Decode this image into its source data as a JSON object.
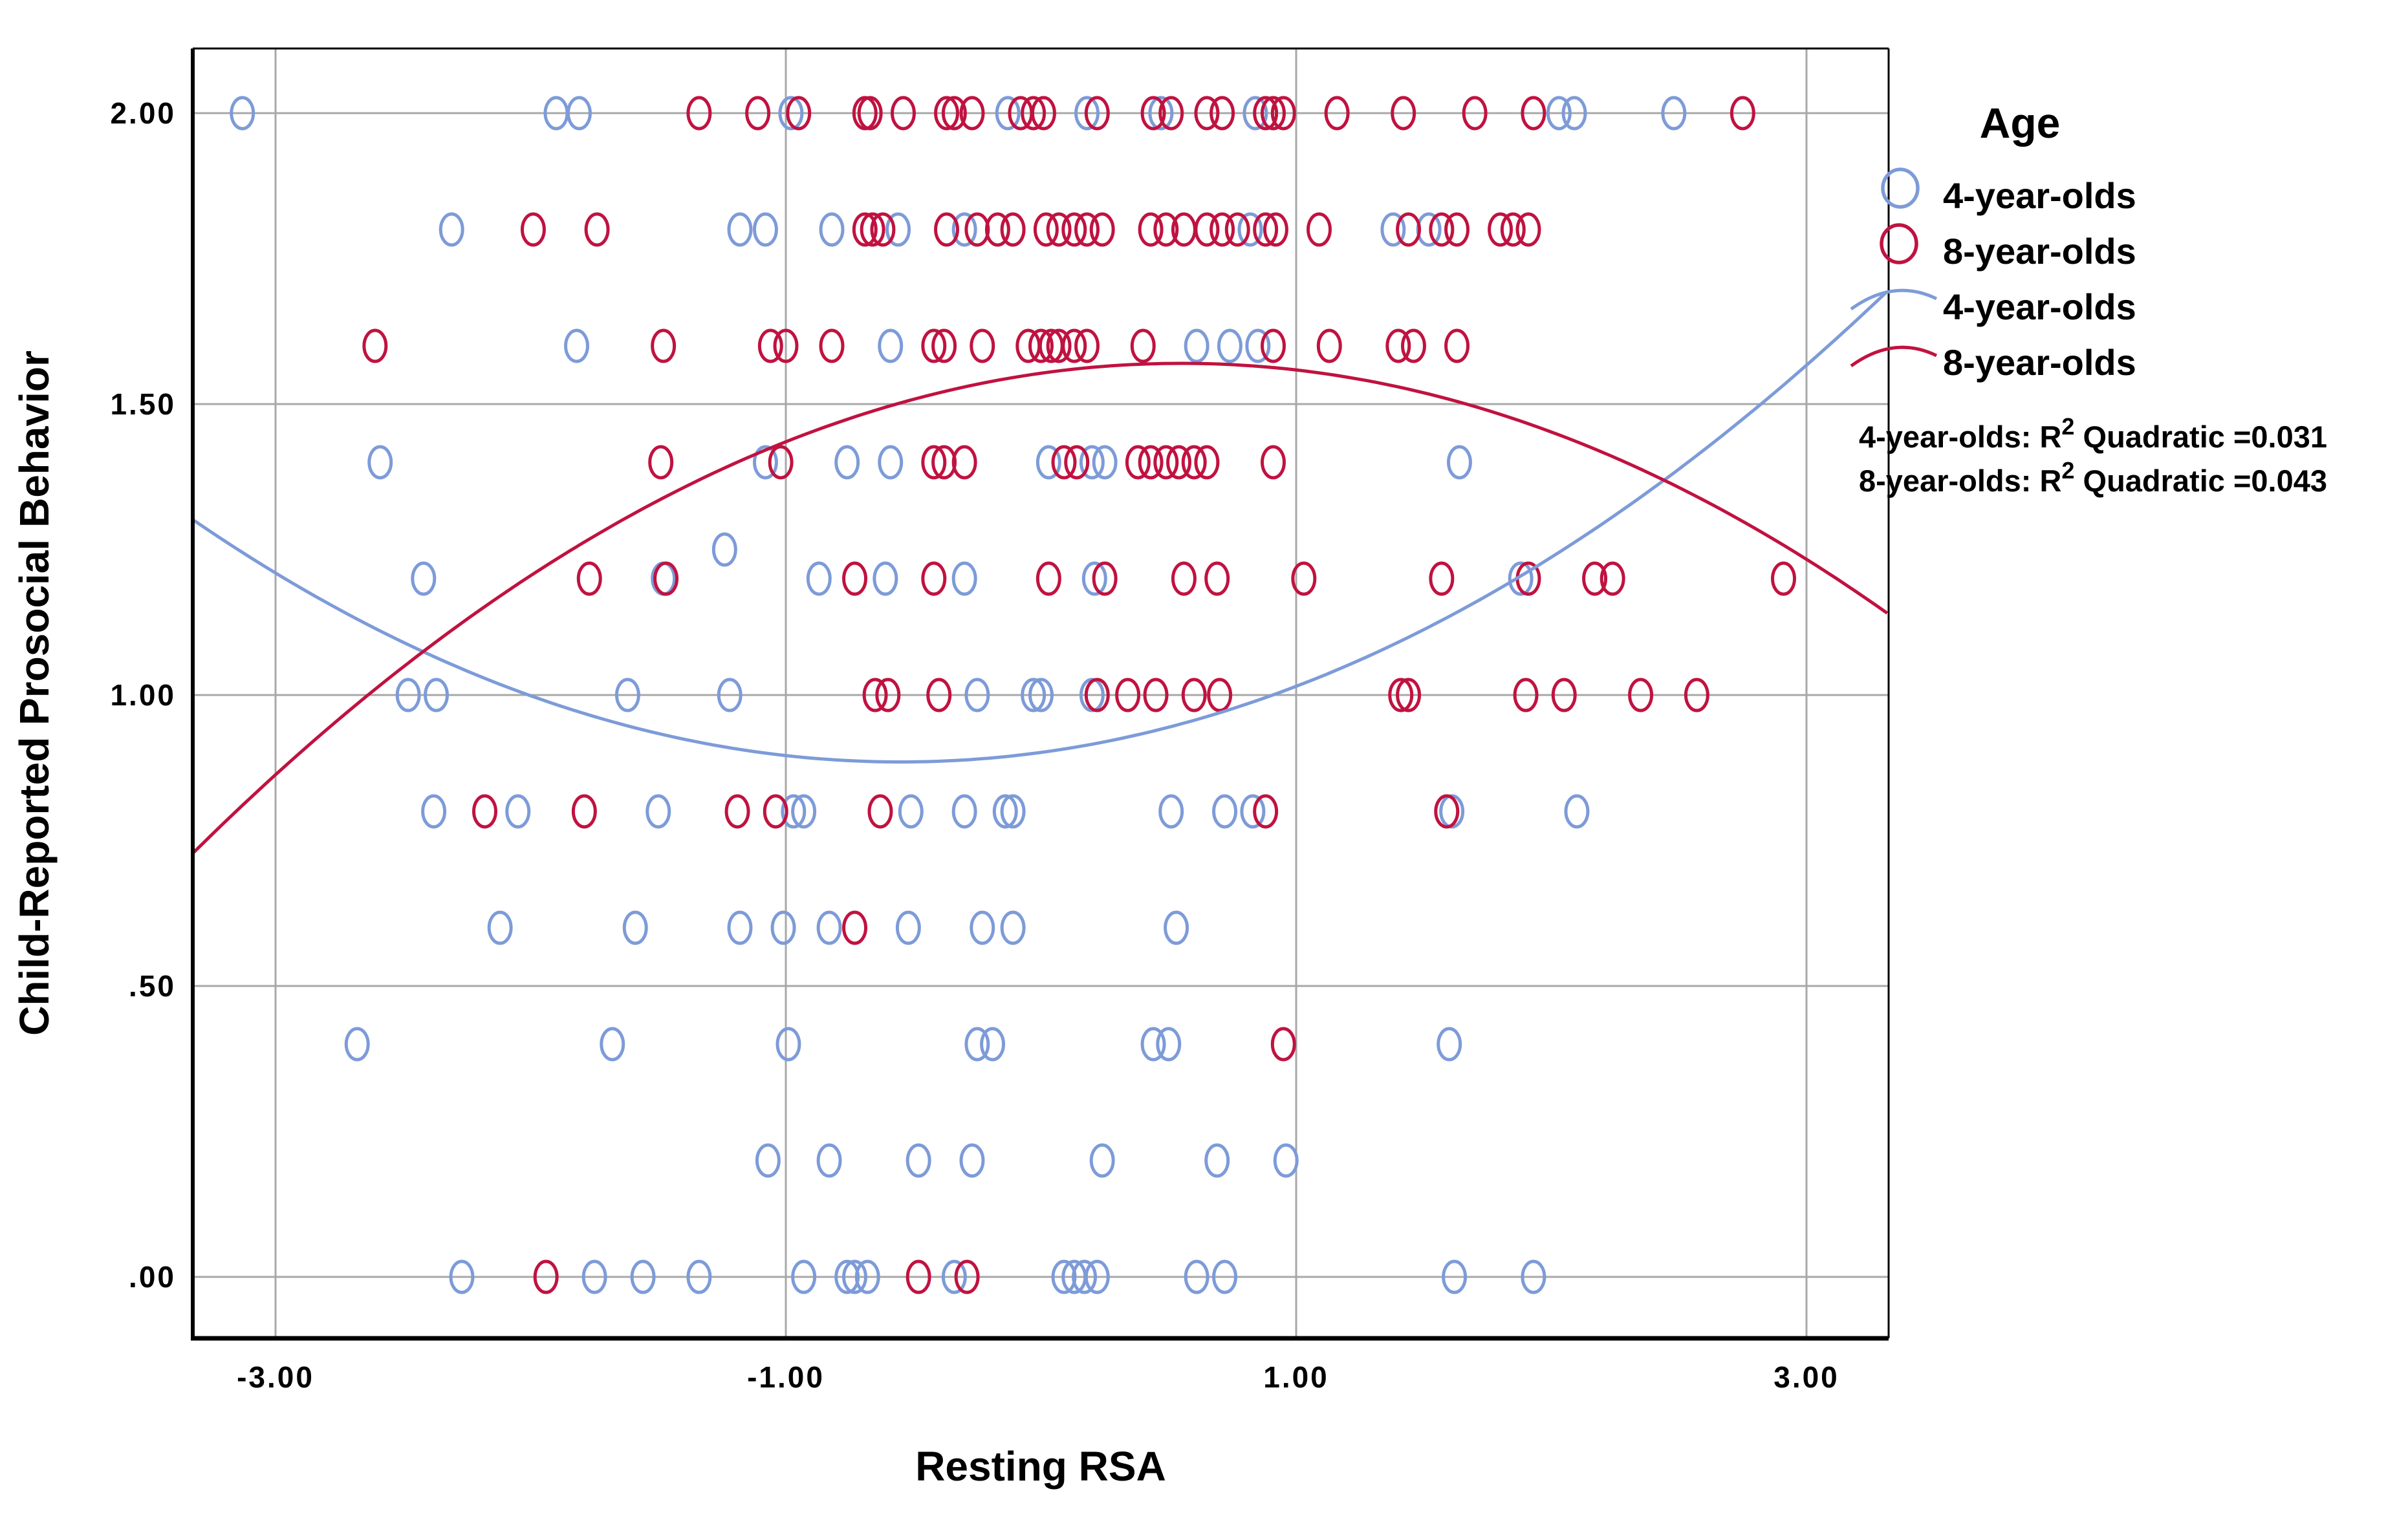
{
  "figure": {
    "x_axis_title": "Resting RSA",
    "y_axis_title": "Child-Reported Prosocial Behavior",
    "colors": {
      "age4": "#7d9bd8",
      "age8": "#c01240",
      "grid": "#a8a8a8",
      "frame": "#000000"
    }
  },
  "legend": {
    "title": "Age",
    "marker_entries": [
      {
        "label": "4-year-olds",
        "color": "#7d9bd8"
      },
      {
        "label": "8-year-olds",
        "color": "#c01240"
      }
    ],
    "line_entries": [
      {
        "label": "4-year-olds",
        "color": "#7d9bd8"
      },
      {
        "label": "8-year-olds",
        "color": "#c01240"
      }
    ],
    "stats_lines": [
      {
        "prefix": "4-year-olds: R",
        "sup": "2",
        "suffix": " Quadratic =0.031"
      },
      {
        "prefix": "8-year-olds: R",
        "sup": "2",
        "suffix": " Quadratic =0.043"
      }
    ]
  },
  "chart_data": {
    "type": "scatter",
    "title": "",
    "xlabel": "Resting RSA",
    "ylabel": "Child-Reported Prosocial Behavior",
    "xlim": [
      -3.324,
      3.322
    ],
    "ylim": [
      -0.106,
      2.111
    ],
    "x_ticks": [
      -3,
      -1,
      1,
      3
    ],
    "x_tick_labels": [
      "-3.00",
      "-1.00",
      "1.00",
      "3.00"
    ],
    "y_ticks": [
      0,
      0.5,
      1,
      1.5,
      2
    ],
    "y_tick_labels": [
      ".00",
      ".50",
      "1.00",
      "1.50",
      "2.00"
    ],
    "grid": true,
    "legend_position": "right",
    "series": [
      {
        "name": "4-year-olds",
        "color": "#7d9bd8",
        "marker": "open-ellipse",
        "fit": {
          "type": "quadratic",
          "a": 0.0541,
          "h": -0.55,
          "k": 0.885,
          "r2": 0.031
        },
        "points": [
          [
            -3.13,
            2.0
          ],
          [
            -1.9,
            2.0
          ],
          [
            -1.81,
            2.0
          ],
          [
            -0.98,
            2.0
          ],
          [
            -0.13,
            2.0
          ],
          [
            0.18,
            2.0
          ],
          [
            0.47,
            2.0
          ],
          [
            0.84,
            2.0
          ],
          [
            2.03,
            2.0
          ],
          [
            2.09,
            2.0
          ],
          [
            2.48,
            2.0
          ],
          [
            -2.31,
            1.8
          ],
          [
            -1.18,
            1.8
          ],
          [
            -1.08,
            1.8
          ],
          [
            -0.82,
            1.8
          ],
          [
            -0.56,
            1.8
          ],
          [
            -0.3,
            1.8
          ],
          [
            0.82,
            1.8
          ],
          [
            1.38,
            1.8
          ],
          [
            1.52,
            1.8
          ],
          [
            -1.82,
            1.6
          ],
          [
            -0.59,
            1.6
          ],
          [
            0.61,
            1.6
          ],
          [
            0.74,
            1.6
          ],
          [
            0.85,
            1.6
          ],
          [
            -2.59,
            1.4
          ],
          [
            -1.08,
            1.4
          ],
          [
            -0.76,
            1.4
          ],
          [
            -0.59,
            1.4
          ],
          [
            0.03,
            1.4
          ],
          [
            0.2,
            1.4
          ],
          [
            0.25,
            1.4
          ],
          [
            1.64,
            1.4
          ],
          [
            -1.24,
            1.25
          ],
          [
            -2.42,
            1.2
          ],
          [
            -1.48,
            1.2
          ],
          [
            -0.87,
            1.2
          ],
          [
            -0.61,
            1.2
          ],
          [
            -0.3,
            1.2
          ],
          [
            0.21,
            1.2
          ],
          [
            1.88,
            1.2
          ],
          [
            -2.48,
            1.0
          ],
          [
            -2.37,
            1.0
          ],
          [
            -1.62,
            1.0
          ],
          [
            -1.22,
            1.0
          ],
          [
            -0.25,
            1.0
          ],
          [
            -0.03,
            1.0
          ],
          [
            0.0,
            1.0
          ],
          [
            0.2,
            1.0
          ],
          [
            -2.38,
            0.8
          ],
          [
            -2.05,
            0.8
          ],
          [
            -1.5,
            0.8
          ],
          [
            -0.97,
            0.8
          ],
          [
            -0.93,
            0.8
          ],
          [
            -0.51,
            0.8
          ],
          [
            -0.3,
            0.8
          ],
          [
            -0.14,
            0.8
          ],
          [
            -0.11,
            0.8
          ],
          [
            0.51,
            0.8
          ],
          [
            0.72,
            0.8
          ],
          [
            0.83,
            0.8
          ],
          [
            1.61,
            0.8
          ],
          [
            2.1,
            0.8
          ],
          [
            -2.12,
            0.6
          ],
          [
            -1.59,
            0.6
          ],
          [
            -1.18,
            0.6
          ],
          [
            -1.01,
            0.6
          ],
          [
            -0.83,
            0.6
          ],
          [
            -0.52,
            0.6
          ],
          [
            -0.23,
            0.6
          ],
          [
            -0.11,
            0.6
          ],
          [
            0.53,
            0.6
          ],
          [
            -2.68,
            0.4
          ],
          [
            -1.68,
            0.4
          ],
          [
            -0.99,
            0.4
          ],
          [
            -0.25,
            0.4
          ],
          [
            -0.19,
            0.4
          ],
          [
            0.44,
            0.4
          ],
          [
            0.5,
            0.4
          ],
          [
            1.6,
            0.4
          ],
          [
            -1.07,
            0.2
          ],
          [
            -0.83,
            0.2
          ],
          [
            -0.48,
            0.2
          ],
          [
            -0.27,
            0.2
          ],
          [
            0.24,
            0.2
          ],
          [
            0.69,
            0.2
          ],
          [
            0.96,
            0.2
          ],
          [
            -2.27,
            0.0
          ],
          [
            -1.75,
            0.0
          ],
          [
            -1.56,
            0.0
          ],
          [
            -1.34,
            0.0
          ],
          [
            -0.93,
            0.0
          ],
          [
            -0.76,
            0.0
          ],
          [
            -0.73,
            0.0
          ],
          [
            -0.68,
            0.0
          ],
          [
            -0.34,
            0.0
          ],
          [
            0.09,
            0.0
          ],
          [
            0.13,
            0.0
          ],
          [
            0.17,
            0.0
          ],
          [
            0.22,
            0.0
          ],
          [
            0.61,
            0.0
          ],
          [
            0.72,
            0.0
          ],
          [
            1.62,
            0.0
          ],
          [
            1.93,
            0.0
          ]
        ]
      },
      {
        "name": "8-year-olds",
        "color": "#c01240",
        "marker": "open-ellipse",
        "fit": {
          "type": "quadratic",
          "a": -0.0561,
          "h": 0.55,
          "k": 1.57,
          "r2": 0.043
        },
        "points": [
          [
            -1.34,
            2.0
          ],
          [
            -1.11,
            2.0
          ],
          [
            -0.95,
            2.0
          ],
          [
            -0.69,
            2.0
          ],
          [
            -0.67,
            2.0
          ],
          [
            -0.54,
            2.0
          ],
          [
            -0.37,
            2.0
          ],
          [
            -0.34,
            2.0
          ],
          [
            -0.27,
            2.0
          ],
          [
            -0.08,
            2.0
          ],
          [
            -0.03,
            2.0
          ],
          [
            0.01,
            2.0
          ],
          [
            0.22,
            2.0
          ],
          [
            0.44,
            2.0
          ],
          [
            0.51,
            2.0
          ],
          [
            0.65,
            2.0
          ],
          [
            0.71,
            2.0
          ],
          [
            0.88,
            2.0
          ],
          [
            0.91,
            2.0
          ],
          [
            0.95,
            2.0
          ],
          [
            1.16,
            2.0
          ],
          [
            1.42,
            2.0
          ],
          [
            1.7,
            2.0
          ],
          [
            1.93,
            2.0
          ],
          [
            2.75,
            2.0
          ],
          [
            -1.99,
            1.8
          ],
          [
            -1.74,
            1.8
          ],
          [
            -0.69,
            1.8
          ],
          [
            -0.66,
            1.8
          ],
          [
            -0.62,
            1.8
          ],
          [
            -0.37,
            1.8
          ],
          [
            -0.25,
            1.8
          ],
          [
            -0.17,
            1.8
          ],
          [
            -0.11,
            1.8
          ],
          [
            0.02,
            1.8
          ],
          [
            0.07,
            1.8
          ],
          [
            0.13,
            1.8
          ],
          [
            0.18,
            1.8
          ],
          [
            0.24,
            1.8
          ],
          [
            0.43,
            1.8
          ],
          [
            0.49,
            1.8
          ],
          [
            0.56,
            1.8
          ],
          [
            0.65,
            1.8
          ],
          [
            0.71,
            1.8
          ],
          [
            0.77,
            1.8
          ],
          [
            0.88,
            1.8
          ],
          [
            0.92,
            1.8
          ],
          [
            1.09,
            1.8
          ],
          [
            1.44,
            1.8
          ],
          [
            1.57,
            1.8
          ],
          [
            1.63,
            1.8
          ],
          [
            1.8,
            1.8
          ],
          [
            1.85,
            1.8
          ],
          [
            1.91,
            1.8
          ],
          [
            -2.61,
            1.6
          ],
          [
            -1.48,
            1.6
          ],
          [
            -1.06,
            1.6
          ],
          [
            -1.0,
            1.6
          ],
          [
            -0.82,
            1.6
          ],
          [
            -0.42,
            1.6
          ],
          [
            -0.38,
            1.6
          ],
          [
            -0.23,
            1.6
          ],
          [
            -0.05,
            1.6
          ],
          [
            0.0,
            1.6
          ],
          [
            0.04,
            1.6
          ],
          [
            0.07,
            1.6
          ],
          [
            0.13,
            1.6
          ],
          [
            0.18,
            1.6
          ],
          [
            0.4,
            1.6
          ],
          [
            0.91,
            1.6
          ],
          [
            1.13,
            1.6
          ],
          [
            1.4,
            1.6
          ],
          [
            1.46,
            1.6
          ],
          [
            1.63,
            1.6
          ],
          [
            -1.49,
            1.4
          ],
          [
            -1.02,
            1.4
          ],
          [
            -0.42,
            1.4
          ],
          [
            -0.38,
            1.4
          ],
          [
            -0.3,
            1.4
          ],
          [
            0.09,
            1.4
          ],
          [
            0.14,
            1.4
          ],
          [
            0.38,
            1.4
          ],
          [
            0.43,
            1.4
          ],
          [
            0.49,
            1.4
          ],
          [
            0.54,
            1.4
          ],
          [
            0.6,
            1.4
          ],
          [
            0.65,
            1.4
          ],
          [
            0.91,
            1.4
          ],
          [
            -1.77,
            1.2
          ],
          [
            -1.47,
            1.2
          ],
          [
            -0.73,
            1.2
          ],
          [
            -0.42,
            1.2
          ],
          [
            0.03,
            1.2
          ],
          [
            0.25,
            1.2
          ],
          [
            0.56,
            1.2
          ],
          [
            0.69,
            1.2
          ],
          [
            1.03,
            1.2
          ],
          [
            1.57,
            1.2
          ],
          [
            1.91,
            1.2
          ],
          [
            2.17,
            1.2
          ],
          [
            2.24,
            1.2
          ],
          [
            2.91,
            1.2
          ],
          [
            -0.65,
            1.0
          ],
          [
            -0.6,
            1.0
          ],
          [
            -0.4,
            1.0
          ],
          [
            0.22,
            1.0
          ],
          [
            0.34,
            1.0
          ],
          [
            0.45,
            1.0
          ],
          [
            0.6,
            1.0
          ],
          [
            0.7,
            1.0
          ],
          [
            1.41,
            1.0
          ],
          [
            1.44,
            1.0
          ],
          [
            1.9,
            1.0
          ],
          [
            2.05,
            1.0
          ],
          [
            2.35,
            1.0
          ],
          [
            2.57,
            1.0
          ],
          [
            -2.18,
            0.8
          ],
          [
            -1.79,
            0.8
          ],
          [
            -1.19,
            0.8
          ],
          [
            -1.04,
            0.8
          ],
          [
            -0.63,
            0.8
          ],
          [
            0.88,
            0.8
          ],
          [
            1.59,
            0.8
          ],
          [
            -0.73,
            0.6
          ],
          [
            0.95,
            0.4
          ],
          [
            -1.94,
            0.0
          ],
          [
            -0.48,
            0.0
          ],
          [
            -0.29,
            0.0
          ]
        ]
      }
    ]
  }
}
